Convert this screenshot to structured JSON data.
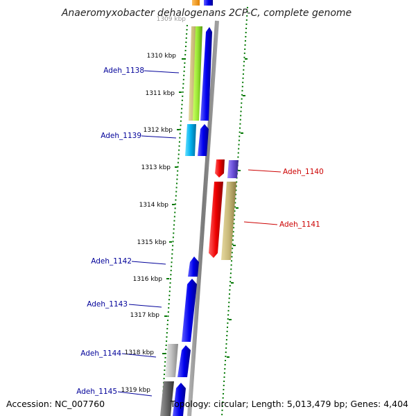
{
  "title": "Anaeromyxobacter dehalogenans 2CP-C, complete genome",
  "accession": "Accession: NC_007760",
  "summary": "Topology: circular; Length: 5,013,479 bp; Genes: 4,404",
  "top_tick_label": "1309 kbp",
  "ticks": [
    "1310 kbp",
    "1311 kbp",
    "1312 kbp",
    "1313 kbp",
    "1314 kbp",
    "1315 kbp",
    "1316 kbp",
    "1317 kbp",
    "1318 kbp",
    "1319 kbp"
  ],
  "genes": [
    {
      "name": "Adeh_1138",
      "strand": "forward",
      "color": "#1010c0"
    },
    {
      "name": "Adeh_1139",
      "strand": "forward",
      "color": "#1010c0"
    },
    {
      "name": "Adeh_1140",
      "strand": "reverse",
      "color": "#cc0000"
    },
    {
      "name": "Adeh_1141",
      "strand": "reverse",
      "color": "#cc0000"
    },
    {
      "name": "Adeh_1142",
      "strand": "forward",
      "color": "#1010c0"
    },
    {
      "name": "Adeh_1143",
      "strand": "forward",
      "color": "#1010c0"
    },
    {
      "name": "Adeh_1144",
      "strand": "forward",
      "color": "#1010c0"
    },
    {
      "name": "Adeh_1145",
      "strand": "forward",
      "color": "#1010c0"
    }
  ],
  "colors": {
    "backbone": "#8a8a8a",
    "forward_cds": "#0000ee",
    "reverse_cds": "#ee0000",
    "gc_ticks": "#007700"
  }
}
